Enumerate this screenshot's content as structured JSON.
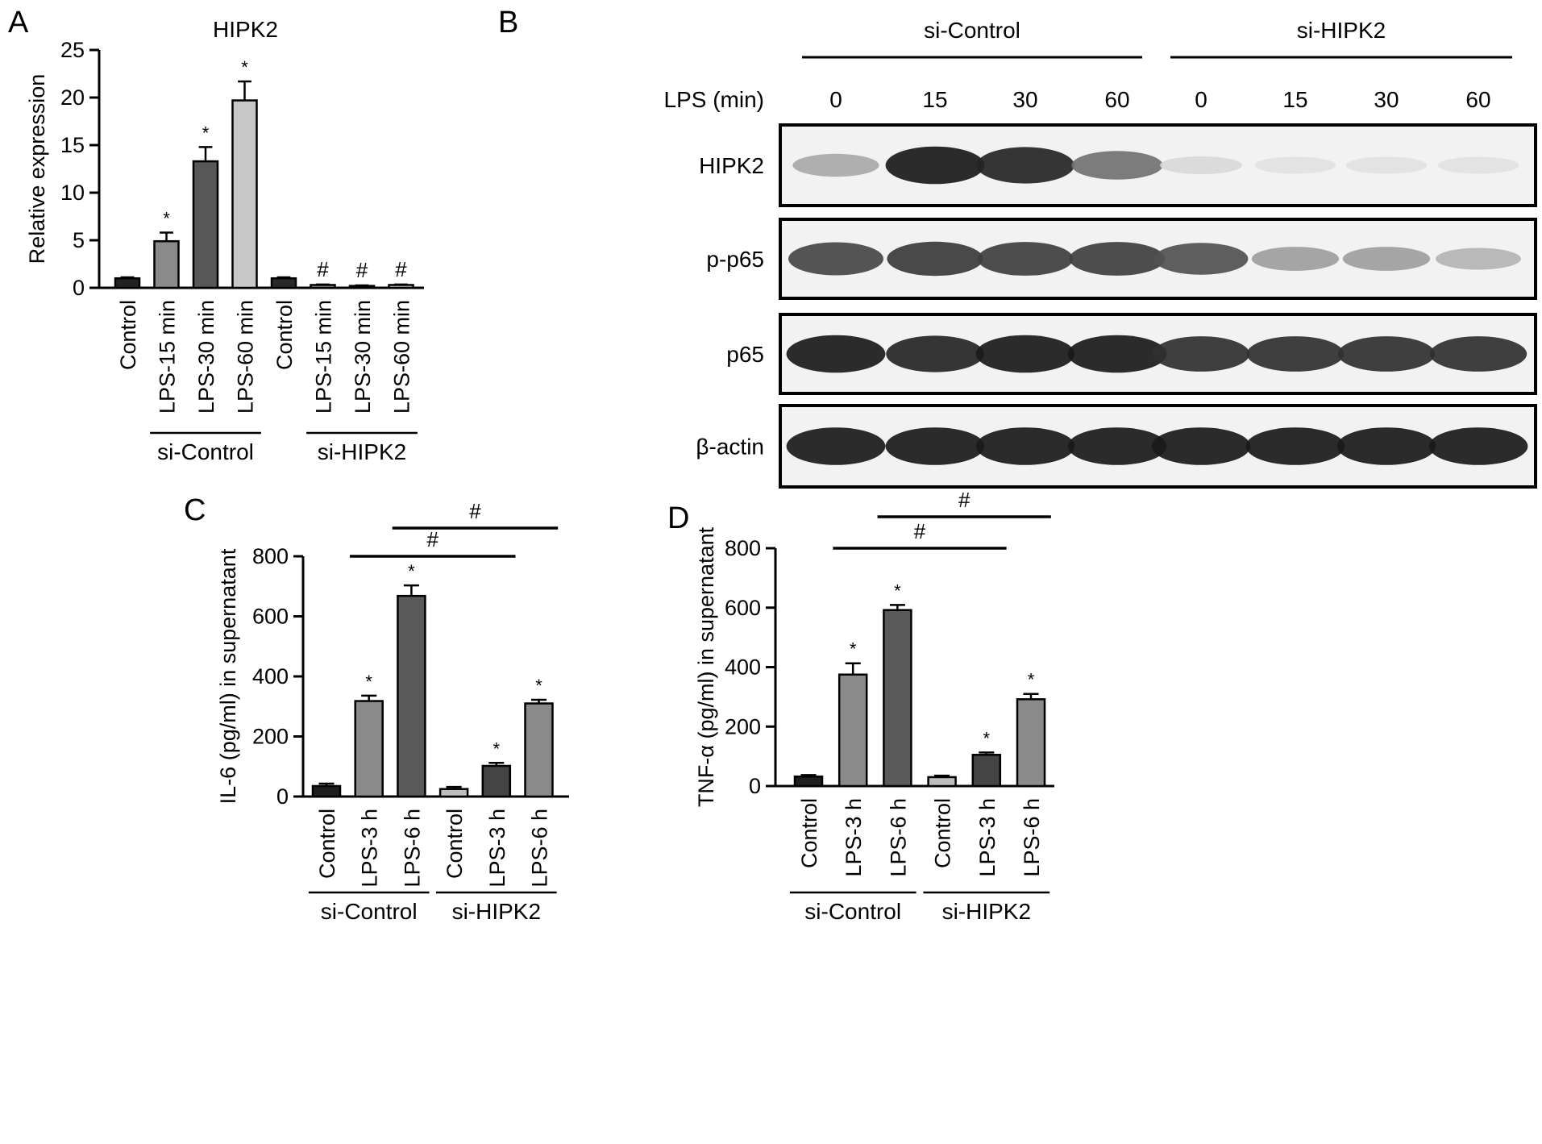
{
  "panels": {
    "A": "A",
    "B": "B",
    "C": "C",
    "D": "D"
  },
  "chart_data": [
    {
      "panel": "A",
      "type": "bar",
      "title": "HIPK2",
      "ylabel": "Relative expression",
      "xlabel": "",
      "ylim": [
        0,
        25
      ],
      "yticks": [
        0,
        5,
        10,
        15,
        20,
        25
      ],
      "categories": [
        "Control",
        "LPS-15 min",
        "LPS-30 min",
        "LPS-60 min",
        "Control",
        "LPS-15 min",
        "LPS-30 min",
        "LPS-60 min"
      ],
      "values": [
        1.0,
        4.9,
        13.3,
        19.7,
        1.0,
        0.3,
        0.2,
        0.3
      ],
      "errors": [
        0.1,
        0.9,
        1.5,
        2.0,
        0.1,
        0.05,
        0.05,
        0.05
      ],
      "bar_colors": [
        "#222222",
        "#8a8a8a",
        "#575757",
        "#c8c8c8",
        "#2a2a2a",
        "#999999",
        "#666666",
        "#c8c8c8"
      ],
      "significance": [
        "",
        "*",
        "*",
        "*",
        "",
        "#",
        "#",
        "#"
      ],
      "groups": [
        {
          "label": "si-Control",
          "start": 1,
          "end": 3
        },
        {
          "label": "si-HIPK2",
          "start": 5,
          "end": 7
        }
      ],
      "grid": false,
      "legend": "none"
    },
    {
      "panel": "C",
      "type": "bar",
      "title": "",
      "ylabel": "IL-6 (pg/ml) in supernatant",
      "xlabel": "",
      "ylim": [
        0,
        800
      ],
      "yticks": [
        0,
        200,
        400,
        600,
        800
      ],
      "categories": [
        "Control",
        "LPS-3 h",
        "LPS-6 h",
        "Control",
        "LPS-3 h",
        "LPS-6 h"
      ],
      "values": [
        35,
        318,
        668,
        25,
        102,
        310
      ],
      "errors": [
        8,
        18,
        35,
        7,
        10,
        12
      ],
      "bar_colors": [
        "#1e1e1e",
        "#8a8a8a",
        "#5a5a5a",
        "#bdbdbd",
        "#444444",
        "#8a8a8a"
      ],
      "significance": [
        "",
        "*",
        "*",
        "",
        "*",
        "*"
      ],
      "brackets": [
        {
          "from": 1,
          "to": 4,
          "label": "#"
        },
        {
          "from": 2,
          "to": 5,
          "label": "#"
        }
      ],
      "groups": [
        {
          "label": "si-Control",
          "start": 0,
          "end": 2
        },
        {
          "label": "si-HIPK2",
          "start": 3,
          "end": 5
        }
      ],
      "grid": false,
      "legend": "none"
    },
    {
      "panel": "D",
      "type": "bar",
      "title": "",
      "ylabel": "TNF-α (pg/ml) in supernatant",
      "xlabel": "",
      "ylim": [
        0,
        800
      ],
      "yticks": [
        0,
        200,
        400,
        600,
        800
      ],
      "categories": [
        "Control",
        "LPS-3 h",
        "LPS-6 h",
        "Control",
        "LPS-3 h",
        "LPS-6 h"
      ],
      "values": [
        32,
        375,
        592,
        30,
        105,
        292
      ],
      "errors": [
        5,
        38,
        17,
        5,
        8,
        18
      ],
      "bar_colors": [
        "#1e1e1e",
        "#8a8a8a",
        "#5a5a5a",
        "#bdbdbd",
        "#444444",
        "#8a8a8a"
      ],
      "significance": [
        "",
        "*",
        "*",
        "",
        "*",
        "*"
      ],
      "brackets": [
        {
          "from": 1,
          "to": 4,
          "label": "#"
        },
        {
          "from": 2,
          "to": 5,
          "label": "#"
        }
      ],
      "groups": [
        {
          "label": "si-Control",
          "start": 0,
          "end": 2
        },
        {
          "label": "si-HIPK2",
          "start": 3,
          "end": 5
        }
      ],
      "grid": false,
      "legend": "none"
    }
  ],
  "western_blot": {
    "panel": "B",
    "groups": [
      "si-Control",
      "si-HIPK2"
    ],
    "time_label": "LPS (min)",
    "times": [
      "0",
      "15",
      "30",
      "60",
      "0",
      "15",
      "30",
      "60"
    ],
    "rows": [
      {
        "label": "HIPK2",
        "intensities": [
          0.3,
          0.95,
          0.9,
          0.55,
          0.08,
          0.04,
          0.04,
          0.04
        ]
      },
      {
        "label": "p-p65",
        "intensities": [
          0.75,
          0.8,
          0.78,
          0.78,
          0.7,
          0.35,
          0.35,
          0.25
        ]
      },
      {
        "label": "p65",
        "intensities": [
          0.95,
          0.9,
          0.95,
          0.95,
          0.85,
          0.85,
          0.85,
          0.85
        ]
      },
      {
        "label": "β-actin",
        "intensities": [
          0.95,
          0.95,
          0.95,
          0.95,
          0.95,
          0.95,
          0.95,
          0.95
        ]
      }
    ]
  }
}
